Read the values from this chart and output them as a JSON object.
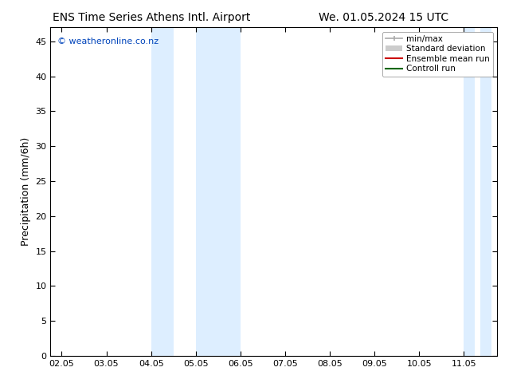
{
  "title_left": "ENS Time Series Athens Intl. Airport",
  "title_right": "We. 01.05.2024 15 UTC",
  "ylabel": "Precipitation (mm/6h)",
  "watermark": "© weatheronline.co.nz",
  "bg_color": "#ffffff",
  "plot_bg_color": "#ffffff",
  "shaded_bands_color": "#ddeeff",
  "x_ticks": [
    2,
    3,
    4,
    5,
    6,
    7,
    8,
    9,
    10,
    11
  ],
  "x_tick_labels": [
    "02.05",
    "03.05",
    "04.05",
    "05.05",
    "06.05",
    "07.05",
    "08.05",
    "09.05",
    "10.05",
    "11.05"
  ],
  "xlim": [
    1.75,
    11.75
  ],
  "ylim": [
    0,
    47
  ],
  "yticks": [
    0,
    5,
    10,
    15,
    20,
    25,
    30,
    35,
    40,
    45
  ],
  "shaded_regions": [
    [
      4.0,
      4.5
    ],
    [
      5.0,
      6.0
    ],
    [
      11.0,
      11.25
    ],
    [
      11.375,
      11.625
    ]
  ],
  "legend_items": [
    {
      "label": "min/max",
      "color": "#aaaaaa",
      "lw": 1.5
    },
    {
      "label": "Standard deviation",
      "color": "#cccccc",
      "lw": 6
    },
    {
      "label": "Ensemble mean run",
      "color": "#cc0000",
      "lw": 1.5
    },
    {
      "label": "Controll run",
      "color": "#006600",
      "lw": 1.5
    }
  ],
  "title_fontsize": 10,
  "axis_label_fontsize": 9,
  "tick_fontsize": 8,
  "watermark_color": "#0044bb",
  "watermark_fontsize": 8,
  "legend_fontsize": 7.5
}
